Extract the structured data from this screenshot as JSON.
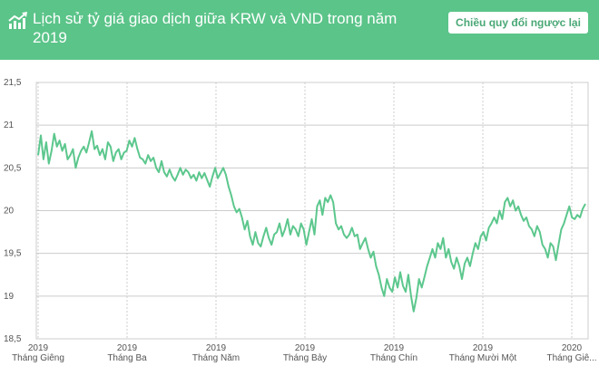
{
  "header": {
    "title": "Lịch sử tỷ giá giao dịch giữa KRW và VND trong năm 2019",
    "reverse_button": "Chiều quy đổi ngược lại",
    "icon": "trend-up-icon"
  },
  "colors": {
    "header_bg": "#5bc489",
    "line": "#5cc78d",
    "grid": "#cccccc",
    "button_text": "#4aa876"
  },
  "chart_data": {
    "type": "line",
    "title": "Lịch sử tỷ giá giao dịch giữa KRW và VND trong năm 2019",
    "xlabel": "",
    "ylabel": "",
    "ylim": [
      18.5,
      21.5
    ],
    "yticks": [
      "21,5",
      "21",
      "20,5",
      "20",
      "19,5",
      "19",
      "18,5"
    ],
    "xticks": [
      {
        "year": "2019",
        "month": "Tháng Giêng"
      },
      {
        "year": "2019",
        "month": "Tháng Ba"
      },
      {
        "year": "2019",
        "month": "Tháng Năm"
      },
      {
        "year": "2019",
        "month": "Tháng Bảy"
      },
      {
        "year": "2019",
        "month": "Tháng Chín"
      },
      {
        "year": "2019",
        "month": "Tháng Mười Một"
      },
      {
        "year": "2020",
        "month": "Tháng Giê..."
      }
    ],
    "grid": true,
    "legend": "none",
    "series": [
      {
        "values": [
          20.65,
          20.88,
          20.6,
          20.8,
          20.55,
          20.7,
          20.9,
          20.75,
          20.82,
          20.7,
          20.78,
          20.6,
          20.65,
          20.72,
          20.5,
          20.62,
          20.7,
          20.75,
          20.68,
          20.8,
          20.93,
          20.72,
          20.76,
          20.65,
          20.72,
          20.6,
          20.8,
          20.75,
          20.58,
          20.68,
          20.72,
          20.6,
          20.68,
          20.7,
          20.82,
          20.75,
          20.85,
          20.72,
          20.62,
          20.6,
          20.55,
          20.65,
          20.58,
          20.62,
          20.5,
          20.45,
          20.58,
          20.45,
          20.4,
          20.48,
          20.4,
          20.35,
          20.42,
          20.5,
          20.42,
          20.48,
          20.45,
          20.38,
          20.42,
          20.35,
          20.45,
          20.38,
          20.44,
          20.36,
          20.28,
          20.4,
          20.5,
          20.38,
          20.44,
          20.5,
          20.42,
          20.28,
          20.18,
          20.05,
          19.98,
          20.02,
          19.92,
          19.78,
          19.88,
          19.7,
          19.6,
          19.75,
          19.62,
          19.58,
          19.7,
          19.8,
          19.68,
          19.6,
          19.72,
          19.75,
          19.85,
          19.7,
          19.78,
          19.9,
          19.72,
          19.82,
          19.78,
          19.7,
          19.85,
          19.78,
          19.6,
          19.75,
          19.9,
          19.72,
          20.05,
          20.12,
          19.95,
          20.15,
          20.1,
          20.18,
          20.1,
          19.85,
          19.78,
          19.82,
          19.72,
          19.68,
          19.72,
          19.8,
          19.7,
          19.72,
          19.55,
          19.62,
          19.68,
          19.55,
          19.45,
          19.52,
          19.35,
          19.25,
          19.1,
          19.0,
          19.2,
          19.1,
          19.05,
          19.22,
          19.1,
          19.28,
          19.12,
          19.05,
          19.25,
          19.0,
          18.82,
          18.98,
          19.2,
          19.1,
          19.22,
          19.35,
          19.45,
          19.55,
          19.45,
          19.62,
          19.55,
          19.68,
          19.45,
          19.55,
          19.4,
          19.32,
          19.45,
          19.35,
          19.2,
          19.38,
          19.45,
          19.35,
          19.5,
          19.62,
          19.55,
          19.7,
          19.75,
          19.65,
          19.8,
          19.85,
          19.92,
          19.85,
          20.0,
          19.9,
          20.1,
          20.15,
          20.05,
          20.12,
          20.0,
          20.05,
          19.95,
          19.88,
          19.92,
          19.82,
          19.78,
          19.7,
          19.82,
          19.75,
          19.6,
          19.55,
          19.45,
          19.62,
          19.58,
          19.42,
          19.6,
          19.78,
          19.85,
          19.95,
          20.05,
          19.92,
          19.9,
          19.95,
          19.92,
          20.02,
          20.08
        ]
      }
    ]
  }
}
